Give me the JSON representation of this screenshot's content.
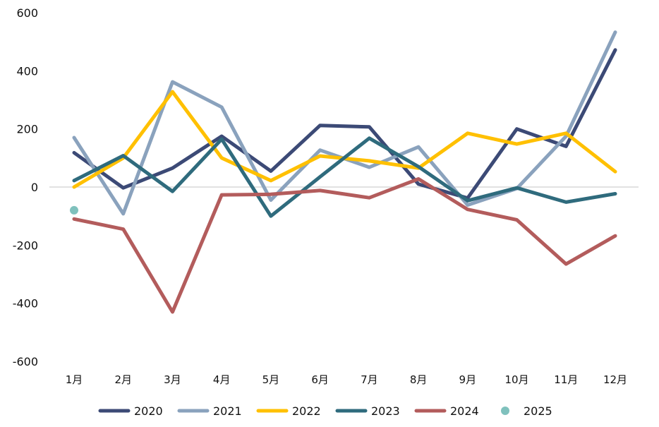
{
  "chart_data": {
    "type": "line",
    "title": "",
    "xlabel": "",
    "ylabel": "",
    "ylim": [
      -600,
      600
    ],
    "yticks": [
      "600",
      "400",
      "200",
      "0",
      "-200",
      "-400",
      "-600"
    ],
    "ytick_values": [
      600,
      400,
      200,
      0,
      -200,
      -400,
      -600
    ],
    "categories": [
      "1月",
      "2月",
      "3月",
      "4月",
      "5月",
      "6月",
      "7月",
      "8月",
      "9月",
      "10月",
      "11月",
      "12月"
    ],
    "grid": false,
    "legend_position": "bottom",
    "series": [
      {
        "name": "2020",
        "color": "#3c4a76",
        "style": "line",
        "values": [
          118,
          -3,
          65,
          175,
          55,
          212,
          207,
          10,
          -38,
          200,
          140,
          472
        ]
      },
      {
        "name": "2021",
        "color": "#8aa2bd",
        "style": "line",
        "values": [
          170,
          -92,
          362,
          275,
          -45,
          127,
          68,
          138,
          -62,
          -5,
          175,
          533
        ]
      },
      {
        "name": "2022",
        "color": "#ffc000",
        "style": "line",
        "values": [
          0,
          100,
          328,
          100,
          22,
          107,
          90,
          65,
          185,
          148,
          185,
          53
        ]
      },
      {
        "name": "2023",
        "color": "#2f6b7d",
        "style": "line",
        "values": [
          22,
          108,
          -15,
          165,
          -100,
          35,
          168,
          70,
          -47,
          -3,
          -52,
          -23
        ]
      },
      {
        "name": "2024",
        "color": "#b35c5c",
        "style": "line",
        "values": [
          -110,
          -145,
          -430,
          -27,
          -25,
          -12,
          -37,
          28,
          -77,
          -113,
          -265,
          -168
        ]
      },
      {
        "name": "2025",
        "color": "#7fc1bd",
        "style": "marker",
        "values": [
          -80,
          null,
          null,
          null,
          null,
          null,
          null,
          null,
          null,
          null,
          null,
          null
        ]
      }
    ]
  }
}
